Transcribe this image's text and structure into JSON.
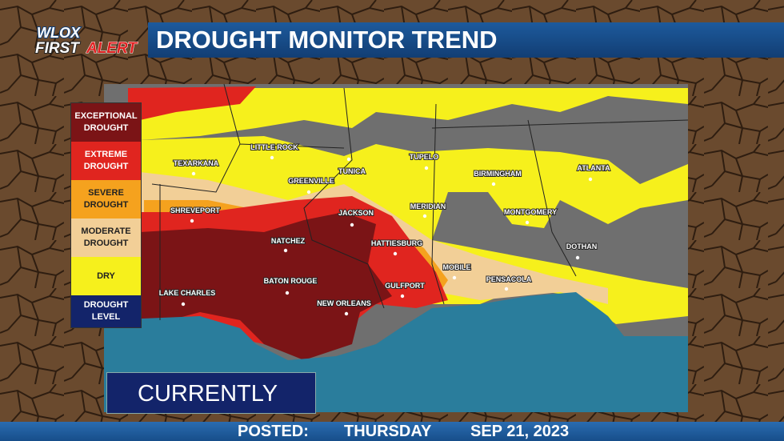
{
  "logo": {
    "brand": "WLOX",
    "first": "FIRST",
    "alert": "ALERT"
  },
  "header": {
    "title": "DROUGHT MONITOR TREND"
  },
  "legend": {
    "items": [
      {
        "label": "EXCEPTIONAL DROUGHT",
        "color": "#7b1416"
      },
      {
        "label": "EXTREME DROUGHT",
        "color": "#e0251f"
      },
      {
        "label": "SEVERE DROUGHT",
        "color": "#f5a21e"
      },
      {
        "label": "MODERATE DROUGHT",
        "color": "#f2cf97"
      },
      {
        "label": "DRY",
        "color": "#f6f01c"
      }
    ],
    "footer": "DROUGHT LEVEL"
  },
  "cities": [
    "LITTLE ROCK",
    "TEXARKANA",
    "TUNICA",
    "TUPELO",
    "GREENVILLE",
    "BIRMINGHAM",
    "ATLANTA",
    "SHREVEPORT",
    "JACKSON",
    "MERIDIAN",
    "MONTGOMERY",
    "NATCHEZ",
    "HATTIESBURG",
    "DOTHAN",
    "MOBILE",
    "PENSACOLA",
    "BATON ROUGE",
    "GULFPORT",
    "LAKE CHARLES",
    "NEW ORLEANS"
  ],
  "period": "CURRENTLY",
  "footer": {
    "label": "POSTED:",
    "day": "THURSDAY",
    "date": "SEP 21, 2023"
  }
}
